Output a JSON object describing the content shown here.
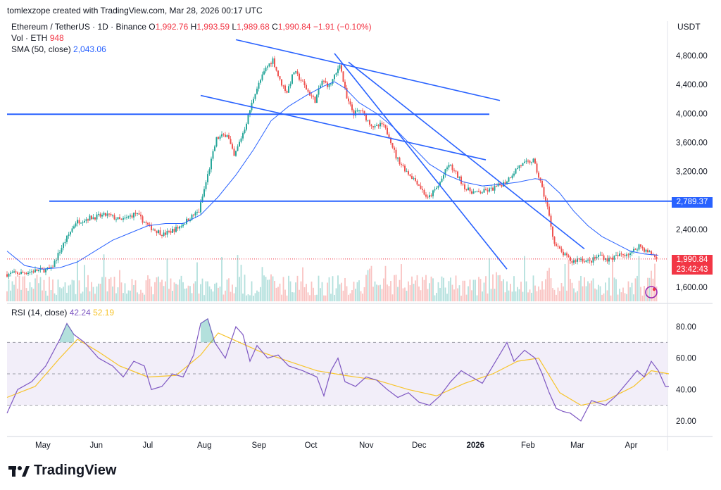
{
  "credit": "tomlexzope created with TradingView.com, Mar 28, 2026 00:17 UTC",
  "symbol_line": "Ethereum / TetherUS · 1D · Binance",
  "ohlc": {
    "o_label": "O",
    "o": "1,992.76",
    "h_label": "H",
    "h": "1,993.59",
    "l_label": "L",
    "l": "1,989.68",
    "c_label": "C",
    "c": "1,990.84",
    "change": "−1.91 (−0.10%)"
  },
  "volume": {
    "label": "Vol · ETH",
    "value": "948"
  },
  "sma": {
    "label": "SMA (50, close)",
    "value": "2,043.06"
  },
  "rsi": {
    "label": "RSI (14, close)",
    "value": "42.24",
    "ma": "52.19"
  },
  "currency": "USDT",
  "last_price": "1,990.84",
  "countdown": "23:42:43",
  "level_label": "2,789.37",
  "logo_text": "TradingView",
  "colors": {
    "up": "#26a69a",
    "down": "#ef5350",
    "sma": "#2962ff",
    "trend": "#2962ff",
    "rsi": "#7e57c2",
    "rsi_ma": "#f7c42c",
    "rsi_band": "#ede7f6"
  },
  "chart_data": {
    "type": "candlestick",
    "xlabels": [
      "May",
      "Jun",
      "Jul",
      "Aug",
      "Sep",
      "Oct",
      "Nov",
      "Dec",
      "2026",
      "Feb",
      "Mar",
      "Apr"
    ],
    "y_ticks": [
      1600,
      2000,
      2400,
      2800,
      3200,
      3600,
      4000,
      4400,
      4800
    ],
    "y_tick_labels": [
      "1,600.00",
      "2,000.00",
      "2,400.00",
      "2,800.00",
      "3,200.00",
      "3,600.00",
      "4,000.00",
      "4,400.00",
      "4,800.00"
    ],
    "ylim": [
      1560,
      5000
    ],
    "rsi_ticks": [
      20,
      40,
      60,
      80
    ],
    "rsi_tick_labels": [
      "20.00",
      "40.00",
      "60.00",
      "80.00"
    ],
    "rsi_bands": [
      30,
      50,
      70
    ],
    "horizontal_levels": [
      3990,
      2789.37
    ],
    "price_path": [
      [
        0,
        1780
      ],
      [
        10,
        1800
      ],
      [
        18,
        1830
      ],
      [
        26,
        1850
      ],
      [
        32,
        2150
      ],
      [
        40,
        2500
      ],
      [
        48,
        2560
      ],
      [
        58,
        2600
      ],
      [
        66,
        2520
      ],
      [
        74,
        2620
      ],
      [
        82,
        2430
      ],
      [
        90,
        2330
      ],
      [
        98,
        2420
      ],
      [
        106,
        2580
      ],
      [
        110,
        2650
      ],
      [
        114,
        3050
      ],
      [
        120,
        3650
      ],
      [
        126,
        3720
      ],
      [
        130,
        3400
      ],
      [
        136,
        3800
      ],
      [
        142,
        4300
      ],
      [
        148,
        4620
      ],
      [
        152,
        4750
      ],
      [
        156,
        4450
      ],
      [
        160,
        4300
      ],
      [
        164,
        4580
      ],
      [
        168,
        4460
      ],
      [
        172,
        4300
      ],
      [
        176,
        4180
      ],
      [
        180,
        4450
      ],
      [
        184,
        4380
      ],
      [
        188,
        4550
      ],
      [
        190,
        4700
      ],
      [
        194,
        4200
      ],
      [
        198,
        4000
      ],
      [
        202,
        4050
      ],
      [
        206,
        3900
      ],
      [
        210,
        3800
      ],
      [
        214,
        3850
      ],
      [
        218,
        3700
      ],
      [
        222,
        3400
      ],
      [
        228,
        3200
      ],
      [
        234,
        3050
      ],
      [
        240,
        2820
      ],
      [
        246,
        3000
      ],
      [
        252,
        3300
      ],
      [
        258,
        3100
      ],
      [
        262,
        2950
      ],
      [
        268,
        2900
      ],
      [
        276,
        2950
      ],
      [
        284,
        3050
      ],
      [
        292,
        3280
      ],
      [
        300,
        3350
      ],
      [
        304,
        3050
      ],
      [
        308,
        2700
      ],
      [
        312,
        2200
      ],
      [
        316,
        2080
      ],
      [
        322,
        1950
      ],
      [
        326,
        2000
      ],
      [
        332,
        1950
      ],
      [
        338,
        2050
      ],
      [
        342,
        1980
      ],
      [
        350,
        2050
      ],
      [
        356,
        2080
      ],
      [
        360,
        2180
      ],
      [
        364,
        2100
      ],
      [
        368,
        2050
      ],
      [
        370,
        1991
      ]
    ],
    "sma_path": [
      [
        0,
        2100
      ],
      [
        10,
        1900
      ],
      [
        20,
        1850
      ],
      [
        30,
        1870
      ],
      [
        40,
        1950
      ],
      [
        50,
        2100
      ],
      [
        60,
        2250
      ],
      [
        70,
        2350
      ],
      [
        80,
        2450
      ],
      [
        90,
        2480
      ],
      [
        100,
        2480
      ],
      [
        110,
        2600
      ],
      [
        120,
        2850
      ],
      [
        130,
        3150
      ],
      [
        140,
        3500
      ],
      [
        150,
        3900
      ],
      [
        160,
        4100
      ],
      [
        170,
        4250
      ],
      [
        180,
        4380
      ],
      [
        186,
        4440
      ],
      [
        192,
        4350
      ],
      [
        200,
        4150
      ],
      [
        210,
        4000
      ],
      [
        220,
        3800
      ],
      [
        230,
        3550
      ],
      [
        240,
        3300
      ],
      [
        250,
        3150
      ],
      [
        260,
        3050
      ],
      [
        270,
        3000
      ],
      [
        280,
        3020
      ],
      [
        290,
        3050
      ],
      [
        300,
        3100
      ],
      [
        306,
        3080
      ],
      [
        314,
        2900
      ],
      [
        322,
        2650
      ],
      [
        330,
        2450
      ],
      [
        338,
        2300
      ],
      [
        346,
        2200
      ],
      [
        354,
        2100
      ],
      [
        362,
        2060
      ],
      [
        370,
        2043
      ]
    ],
    "trendlines_price": [
      {
        "from": [
          130,
          5020
        ],
        "to": [
          280,
          4180
        ]
      },
      {
        "from": [
          110,
          4250
        ],
        "to": [
          272,
          3360
        ]
      },
      {
        "from": [
          194,
          4710
        ],
        "to": [
          328,
          2130
        ]
      },
      {
        "from": [
          186,
          4830
        ],
        "to": [
          284,
          1850
        ]
      }
    ],
    "rsi_path": [
      [
        0,
        25
      ],
      [
        6,
        40
      ],
      [
        14,
        45
      ],
      [
        22,
        55
      ],
      [
        30,
        72
      ],
      [
        34,
        82
      ],
      [
        38,
        75
      ],
      [
        44,
        70
      ],
      [
        52,
        60
      ],
      [
        60,
        55
      ],
      [
        66,
        48
      ],
      [
        72,
        58
      ],
      [
        78,
        55
      ],
      [
        82,
        40
      ],
      [
        88,
        42
      ],
      [
        94,
        50
      ],
      [
        100,
        48
      ],
      [
        106,
        62
      ],
      [
        110,
        82
      ],
      [
        114,
        85
      ],
      [
        118,
        70
      ],
      [
        124,
        60
      ],
      [
        130,
        80
      ],
      [
        134,
        75
      ],
      [
        138,
        58
      ],
      [
        142,
        68
      ],
      [
        148,
        60
      ],
      [
        154,
        62
      ],
      [
        160,
        55
      ],
      [
        168,
        52
      ],
      [
        176,
        48
      ],
      [
        180,
        36
      ],
      [
        184,
        52
      ],
      [
        188,
        60
      ],
      [
        192,
        45
      ],
      [
        198,
        42
      ],
      [
        204,
        48
      ],
      [
        210,
        46
      ],
      [
        216,
        40
      ],
      [
        222,
        35
      ],
      [
        228,
        38
      ],
      [
        234,
        32
      ],
      [
        240,
        30
      ],
      [
        246,
        36
      ],
      [
        252,
        45
      ],
      [
        258,
        52
      ],
      [
        264,
        48
      ],
      [
        270,
        44
      ],
      [
        276,
        55
      ],
      [
        284,
        70
      ],
      [
        288,
        58
      ],
      [
        294,
        65
      ],
      [
        300,
        60
      ],
      [
        304,
        50
      ],
      [
        308,
        38
      ],
      [
        312,
        28
      ],
      [
        316,
        26
      ],
      [
        320,
        25
      ],
      [
        326,
        20
      ],
      [
        332,
        33
      ],
      [
        340,
        30
      ],
      [
        346,
        36
      ],
      [
        352,
        44
      ],
      [
        358,
        52
      ],
      [
        362,
        48
      ],
      [
        366,
        58
      ],
      [
        370,
        52
      ],
      [
        374,
        42
      ],
      [
        376,
        42
      ]
    ],
    "rsi_ma_path": [
      [
        0,
        35
      ],
      [
        16,
        42
      ],
      [
        30,
        60
      ],
      [
        40,
        72
      ],
      [
        52,
        64
      ],
      [
        64,
        55
      ],
      [
        80,
        48
      ],
      [
        96,
        49
      ],
      [
        110,
        62
      ],
      [
        120,
        76
      ],
      [
        132,
        70
      ],
      [
        144,
        64
      ],
      [
        160,
        58
      ],
      [
        176,
        52
      ],
      [
        192,
        49
      ],
      [
        210,
        46
      ],
      [
        228,
        40
      ],
      [
        244,
        36
      ],
      [
        260,
        44
      ],
      [
        276,
        50
      ],
      [
        290,
        58
      ],
      [
        302,
        60
      ],
      [
        314,
        38
      ],
      [
        326,
        30
      ],
      [
        340,
        33
      ],
      [
        356,
        42
      ],
      [
        366,
        52
      ],
      [
        376,
        50
      ]
    ]
  }
}
